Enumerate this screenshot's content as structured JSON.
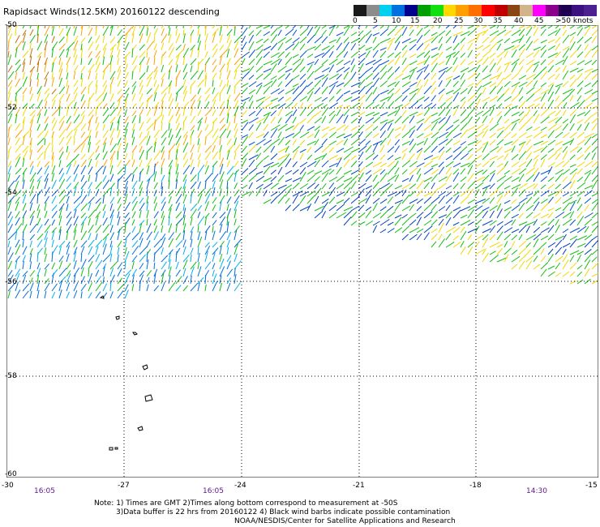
{
  "header": {
    "title": "Rapidsact Winds(12.5KM) 20160122 descending"
  },
  "legend": {
    "colors": [
      "#1a1a1a",
      "#8c8c8c",
      "#00d0f0",
      "#0070e0",
      "#00008c",
      "#00a000",
      "#10e010",
      "#ffd800",
      "#ffa000",
      "#ff7000",
      "#ff0000",
      "#c00000",
      "#8b4513",
      "#d2b48c",
      "#ff00ff",
      "#8b008b",
      "#1e0050",
      "#3c1080",
      "#4b2090"
    ],
    "labels": [
      "0",
      "5",
      "10",
      "15",
      "20",
      "25",
      "30",
      "35",
      "40",
      "45",
      ">50 knots"
    ]
  },
  "map": {
    "lat_labels": [
      "-50",
      "-52",
      "-54",
      "-56",
      "-58",
      "-60"
    ],
    "lon_labels": [
      "-30",
      "-27",
      "-24",
      "-21",
      "-18",
      "-15"
    ],
    "time_labels": [
      "16:05",
      "16:05",
      "14:30"
    ]
  },
  "notes": {
    "line1": "Note: 1) Times are GMT 2)Times along bottom correspond to measurement at -50S",
    "line2": "3)Data buffer is 22 hrs from 20160122 4) Black wind barbs indicate possible contamination",
    "line3": "NOAA/NESDIS/Center for Satellite Applications and Research"
  }
}
